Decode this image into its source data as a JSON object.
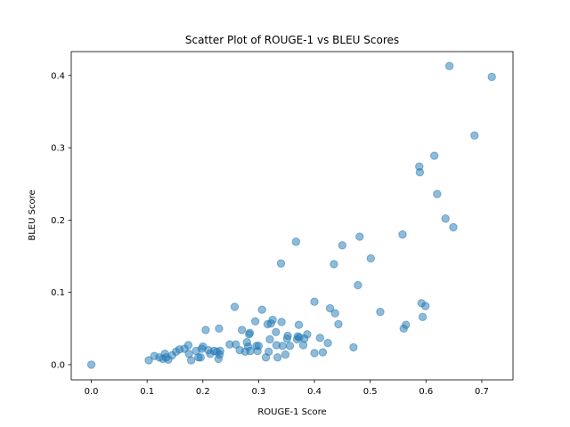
{
  "chart_data": {
    "type": "scatter",
    "title": "Scatter Plot of ROUGE-1 vs BLEU Scores",
    "xlabel": "ROUGE-1 Score",
    "ylabel": "BLEU Score",
    "xlim": [
      -0.036,
      0.756
    ],
    "ylim": [
      -0.021,
      0.433
    ],
    "xticks": [
      0.0,
      0.1,
      0.2,
      0.3,
      0.4,
      0.5,
      0.6,
      0.7
    ],
    "xtick_labels": [
      "0.0",
      "0.1",
      "0.2",
      "0.3",
      "0.4",
      "0.5",
      "0.6",
      "0.7"
    ],
    "yticks": [
      0.0,
      0.1,
      0.2,
      0.3,
      0.4
    ],
    "ytick_labels": [
      "0.0",
      "0.1",
      "0.2",
      "0.3",
      "0.4"
    ],
    "grid": false,
    "marker_color": "#1f77b4",
    "marker_alpha": 0.5,
    "points": [
      [
        0.0,
        0.0
      ],
      [
        0.103,
        0.006
      ],
      [
        0.113,
        0.012
      ],
      [
        0.122,
        0.01
      ],
      [
        0.128,
        0.008
      ],
      [
        0.132,
        0.015
      ],
      [
        0.134,
        0.01
      ],
      [
        0.138,
        0.007
      ],
      [
        0.145,
        0.013
      ],
      [
        0.152,
        0.018
      ],
      [
        0.158,
        0.021
      ],
      [
        0.167,
        0.022
      ],
      [
        0.174,
        0.027
      ],
      [
        0.175,
        0.015
      ],
      [
        0.179,
        0.006
      ],
      [
        0.188,
        0.019
      ],
      [
        0.192,
        0.01
      ],
      [
        0.196,
        0.01
      ],
      [
        0.198,
        0.022
      ],
      [
        0.2,
        0.025
      ],
      [
        0.205,
        0.048
      ],
      [
        0.21,
        0.02
      ],
      [
        0.213,
        0.015
      ],
      [
        0.22,
        0.019
      ],
      [
        0.225,
        0.018
      ],
      [
        0.228,
        0.008
      ],
      [
        0.229,
        0.05
      ],
      [
        0.23,
        0.014
      ],
      [
        0.231,
        0.019
      ],
      [
        0.248,
        0.028
      ],
      [
        0.257,
        0.08
      ],
      [
        0.259,
        0.028
      ],
      [
        0.266,
        0.02
      ],
      [
        0.27,
        0.048
      ],
      [
        0.276,
        0.018
      ],
      [
        0.279,
        0.031
      ],
      [
        0.281,
        0.025
      ],
      [
        0.283,
        0.042
      ],
      [
        0.284,
        0.044
      ],
      [
        0.285,
        0.019
      ],
      [
        0.294,
        0.06
      ],
      [
        0.296,
        0.026
      ],
      [
        0.298,
        0.019
      ],
      [
        0.3,
        0.026
      ],
      [
        0.306,
        0.076
      ],
      [
        0.313,
        0.01
      ],
      [
        0.316,
        0.056
      ],
      [
        0.318,
        0.018
      ],
      [
        0.32,
        0.035
      ],
      [
        0.322,
        0.057
      ],
      [
        0.325,
        0.062
      ],
      [
        0.331,
        0.045
      ],
      [
        0.332,
        0.027
      ],
      [
        0.334,
        0.01
      ],
      [
        0.34,
        0.14
      ],
      [
        0.341,
        0.059
      ],
      [
        0.343,
        0.026
      ],
      [
        0.348,
        0.014
      ],
      [
        0.351,
        0.036
      ],
      [
        0.352,
        0.04
      ],
      [
        0.356,
        0.026
      ],
      [
        0.367,
        0.17
      ],
      [
        0.369,
        0.035
      ],
      [
        0.37,
        0.039
      ],
      [
        0.372,
        0.055
      ],
      [
        0.373,
        0.038
      ],
      [
        0.38,
        0.027
      ],
      [
        0.382,
        0.036
      ],
      [
        0.387,
        0.042
      ],
      [
        0.4,
        0.087
      ],
      [
        0.4,
        0.016
      ],
      [
        0.41,
        0.037
      ],
      [
        0.415,
        0.017
      ],
      [
        0.424,
        0.03
      ],
      [
        0.428,
        0.078
      ],
      [
        0.435,
        0.139
      ],
      [
        0.437,
        0.071
      ],
      [
        0.443,
        0.056
      ],
      [
        0.45,
        0.165
      ],
      [
        0.47,
        0.024
      ],
      [
        0.478,
        0.11
      ],
      [
        0.481,
        0.177
      ],
      [
        0.501,
        0.147
      ],
      [
        0.518,
        0.073
      ],
      [
        0.558,
        0.18
      ],
      [
        0.56,
        0.05
      ],
      [
        0.564,
        0.055
      ],
      [
        0.588,
        0.274
      ],
      [
        0.589,
        0.266
      ],
      [
        0.592,
        0.085
      ],
      [
        0.594,
        0.066
      ],
      [
        0.599,
        0.081
      ],
      [
        0.615,
        0.289
      ],
      [
        0.62,
        0.236
      ],
      [
        0.635,
        0.202
      ],
      [
        0.642,
        0.413
      ],
      [
        0.649,
        0.19
      ],
      [
        0.687,
        0.317
      ],
      [
        0.718,
        0.398
      ]
    ]
  }
}
